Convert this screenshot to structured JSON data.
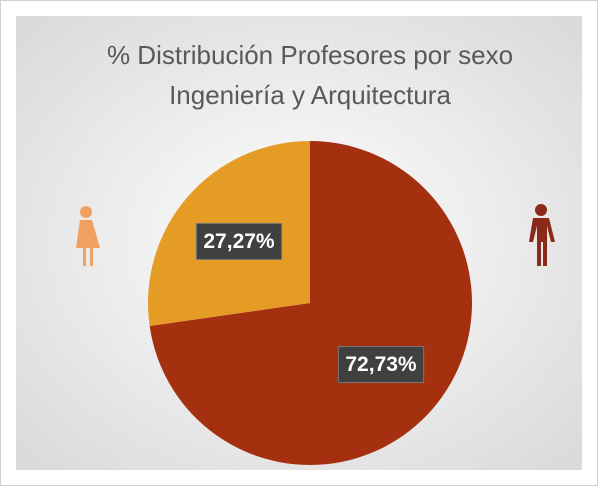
{
  "chart_data": {
    "type": "pie",
    "title": "% Distribución Profesores por sexo",
    "subtitle": "Ingeniería y Arquitectura",
    "values": [
      72.73,
      27.27
    ],
    "value_labels": [
      "72,73%",
      "27,27%"
    ],
    "colors": [
      "#a5300f",
      "#e59c24"
    ]
  }
}
